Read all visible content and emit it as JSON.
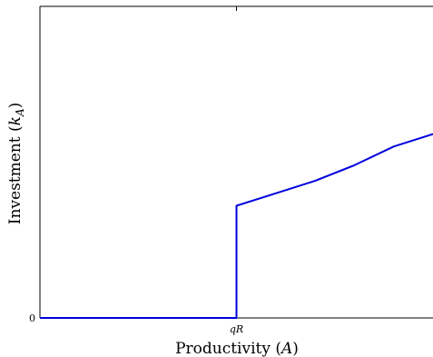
{
  "chart_data": {
    "type": "line",
    "xlabel": "Productivity",
    "xlabel_var": "A",
    "ylabel": "Investment",
    "ylabel_var": "k",
    "ylabel_sub": "A",
    "x_ticks": [
      {
        "value": 0.5,
        "label": "qR"
      }
    ],
    "y_ticks": [
      {
        "value": 0,
        "label": "0"
      }
    ],
    "xlim": [
      0,
      1
    ],
    "ylim": [
      0,
      1
    ],
    "grid": false,
    "color": "#0000dd",
    "series": [
      {
        "x": [
          0.0,
          0.5,
          0.5,
          0.6,
          0.7,
          0.8,
          0.9,
          1.0
        ],
        "y": [
          0.0,
          0.0,
          0.36,
          0.4,
          0.44,
          0.49,
          0.55,
          0.59
        ]
      }
    ]
  }
}
